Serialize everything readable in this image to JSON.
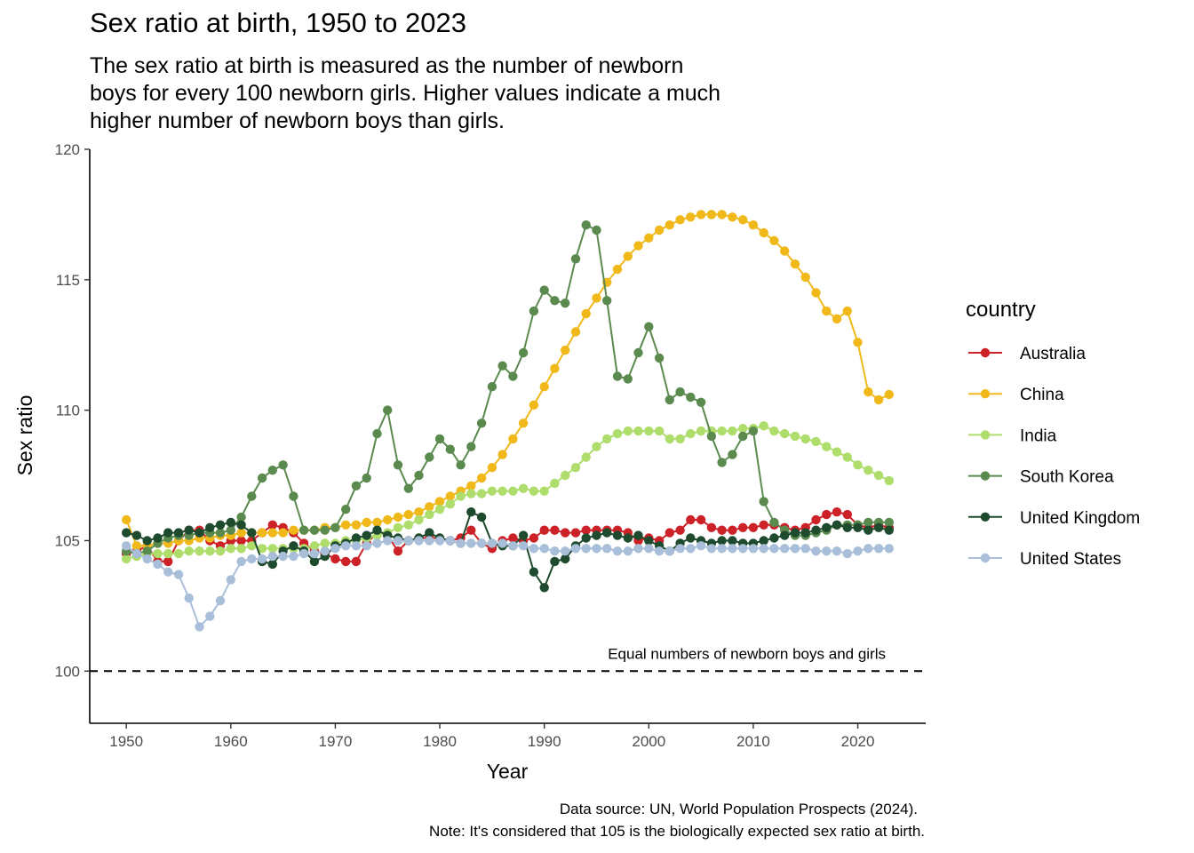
{
  "chart_data": {
    "type": "line",
    "title": "Sex ratio at birth, 1950 to 2023",
    "subtitle": "The sex ratio at birth is measured as the number of newborn\nboys for every 100 newborn girls. Higher values indicate a much\nhigher number of newborn boys than girls.",
    "xlabel": "Year",
    "ylabel": "Sex ratio",
    "xlim": [
      1946.5,
      2026.5
    ],
    "ylim": [
      98,
      120
    ],
    "x_ticks": [
      1950,
      1960,
      1970,
      1980,
      1990,
      2000,
      2010,
      2020
    ],
    "y_ticks": [
      100,
      105,
      110,
      115,
      120
    ],
    "grid": false,
    "legend_title": "country",
    "legend_position": "right",
    "reference_line": {
      "y": 100,
      "style": "dashed",
      "label": "Equal numbers of newborn boys and girls"
    },
    "caption": [
      "Data source: UN, World Population Prospects (2024).",
      "Note: It's considered that 105 is the biologically expected sex ratio at birth."
    ],
    "x": [
      1950,
      1951,
      1952,
      1953,
      1954,
      1955,
      1956,
      1957,
      1958,
      1959,
      1960,
      1961,
      1962,
      1963,
      1964,
      1965,
      1966,
      1967,
      1968,
      1969,
      1970,
      1971,
      1972,
      1973,
      1974,
      1975,
      1976,
      1977,
      1978,
      1979,
      1980,
      1981,
      1982,
      1983,
      1984,
      1985,
      1986,
      1987,
      1988,
      1989,
      1990,
      1991,
      1992,
      1993,
      1994,
      1995,
      1996,
      1997,
      1998,
      1999,
      2000,
      2001,
      2002,
      2003,
      2004,
      2005,
      2006,
      2007,
      2008,
      2009,
      2010,
      2011,
      2012,
      2013,
      2014,
      2015,
      2016,
      2017,
      2018,
      2019,
      2020,
      2021,
      2022,
      2023
    ],
    "series": [
      {
        "name": "Australia",
        "color": "#cc2127",
        "values": [
          104.5,
          104.6,
          104.8,
          104.2,
          104.2,
          105.0,
          105.4,
          105.4,
          105.0,
          104.8,
          105.0,
          105.0,
          105.0,
          105.3,
          105.6,
          105.5,
          105.3,
          104.9,
          104.6,
          104.5,
          104.3,
          104.2,
          104.2,
          104.9,
          105.3,
          105.2,
          104.6,
          105.0,
          105.1,
          105.1,
          105.1,
          105.0,
          105.1,
          105.4,
          104.9,
          104.7,
          105.0,
          105.1,
          105.0,
          105.1,
          105.4,
          105.4,
          105.3,
          105.3,
          105.4,
          105.4,
          105.4,
          105.4,
          105.3,
          105.0,
          105.1,
          105.0,
          105.3,
          105.4,
          105.8,
          105.8,
          105.5,
          105.4,
          105.4,
          105.5,
          105.5,
          105.6,
          105.6,
          105.5,
          105.4,
          105.5,
          105.8,
          106.0,
          106.1,
          106.0,
          105.6,
          105.5,
          105.6,
          105.5
        ]
      },
      {
        "name": "China",
        "color": "#f0b819",
        "values": [
          105.8,
          104.8,
          104.8,
          104.9,
          104.9,
          105.0,
          105.0,
          105.1,
          105.1,
          105.2,
          105.2,
          105.3,
          105.3,
          105.3,
          105.3,
          105.3,
          105.4,
          105.4,
          105.4,
          105.5,
          105.5,
          105.6,
          105.6,
          105.7,
          105.7,
          105.8,
          105.9,
          106.0,
          106.1,
          106.3,
          106.5,
          106.7,
          106.9,
          107.1,
          107.4,
          107.8,
          108.3,
          108.9,
          109.5,
          110.2,
          110.9,
          111.6,
          112.3,
          113.0,
          113.7,
          114.3,
          114.9,
          115.4,
          115.9,
          116.3,
          116.6,
          116.9,
          117.1,
          117.3,
          117.4,
          117.5,
          117.5,
          117.5,
          117.4,
          117.3,
          117.1,
          116.8,
          116.5,
          116.1,
          115.6,
          115.1,
          114.5,
          113.8,
          113.5,
          113.8,
          112.6,
          110.7,
          110.4,
          110.6
        ]
      },
      {
        "name": "India",
        "color": "#aedd6c",
        "values": [
          104.3,
          104.4,
          104.5,
          104.5,
          104.5,
          104.5,
          104.6,
          104.6,
          104.6,
          104.6,
          104.7,
          104.7,
          104.8,
          104.7,
          104.7,
          104.7,
          104.7,
          104.7,
          104.8,
          104.9,
          104.9,
          105.0,
          105.0,
          105.1,
          105.2,
          105.3,
          105.5,
          105.6,
          105.8,
          106.0,
          106.2,
          106.4,
          106.7,
          106.8,
          106.8,
          106.9,
          106.9,
          106.9,
          107.0,
          106.9,
          106.9,
          107.2,
          107.5,
          107.8,
          108.2,
          108.6,
          108.9,
          109.1,
          109.2,
          109.2,
          109.2,
          109.2,
          108.9,
          108.9,
          109.1,
          109.2,
          109.2,
          109.2,
          109.2,
          109.3,
          109.3,
          109.4,
          109.2,
          109.1,
          109.0,
          108.9,
          108.8,
          108.6,
          108.4,
          108.2,
          107.9,
          107.7,
          107.5,
          107.3
        ]
      },
      {
        "name": "South Korea",
        "color": "#5b8a4f",
        "values": [
          104.6,
          104.5,
          104.6,
          104.9,
          105.1,
          105.2,
          105.2,
          105.3,
          105.3,
          105.3,
          105.4,
          105.9,
          106.7,
          107.4,
          107.7,
          107.9,
          106.7,
          105.4,
          105.4,
          105.4,
          105.5,
          106.2,
          107.1,
          107.4,
          109.1,
          110.0,
          107.9,
          107.0,
          107.5,
          108.2,
          108.9,
          108.5,
          107.9,
          108.6,
          109.5,
          110.9,
          111.7,
          111.3,
          112.2,
          113.8,
          114.6,
          114.2,
          114.1,
          115.8,
          117.1,
          116.9,
          114.2,
          111.3,
          111.2,
          112.2,
          113.2,
          112.0,
          110.4,
          110.7,
          110.5,
          110.3,
          109.0,
          108.0,
          108.3,
          109.0,
          109.2,
          106.5,
          105.7,
          105.4,
          105.2,
          105.2,
          105.3,
          105.4,
          105.6,
          105.6,
          105.6,
          105.7,
          105.7,
          105.7
        ]
      },
      {
        "name": "United Kingdom",
        "color": "#1e4a2e",
        "values": [
          105.3,
          105.2,
          105.0,
          105.1,
          105.3,
          105.3,
          105.4,
          105.3,
          105.5,
          105.6,
          105.7,
          105.6,
          105.3,
          104.2,
          104.1,
          104.6,
          104.8,
          104.6,
          104.2,
          104.4,
          104.8,
          104.9,
          105.1,
          105.2,
          105.4,
          105.2,
          105.1,
          105.0,
          105.1,
          105.3,
          105.1,
          105.0,
          104.9,
          106.1,
          105.9,
          104.9,
          104.8,
          104.8,
          105.2,
          103.8,
          103.2,
          104.2,
          104.3,
          104.8,
          105.1,
          105.2,
          105.3,
          105.2,
          105.1,
          105.2,
          105.0,
          104.8,
          104.6,
          104.9,
          105.1,
          105.0,
          104.9,
          105.0,
          105.0,
          104.9,
          104.9,
          105.0,
          105.1,
          105.2,
          105.3,
          105.3,
          105.4,
          105.5,
          105.6,
          105.5,
          105.5,
          105.4,
          105.5,
          105.4
        ]
      },
      {
        "name": "United States",
        "color": "#a9bfd9",
        "values": [
          104.8,
          104.5,
          104.3,
          104.1,
          103.8,
          103.7,
          102.8,
          101.7,
          102.1,
          102.7,
          103.5,
          104.2,
          104.3,
          104.3,
          104.4,
          104.4,
          104.4,
          104.5,
          104.5,
          104.6,
          104.7,
          104.8,
          104.8,
          104.8,
          104.9,
          105.0,
          105.0,
          105.0,
          105.0,
          105.0,
          105.0,
          105.0,
          104.9,
          104.9,
          104.9,
          104.9,
          104.9,
          104.8,
          104.8,
          104.7,
          104.7,
          104.6,
          104.6,
          104.7,
          104.7,
          104.7,
          104.7,
          104.6,
          104.6,
          104.7,
          104.7,
          104.6,
          104.6,
          104.7,
          104.7,
          104.8,
          104.7,
          104.7,
          104.7,
          104.7,
          104.7,
          104.7,
          104.7,
          104.7,
          104.7,
          104.7,
          104.6,
          104.6,
          104.6,
          104.5,
          104.6,
          104.7,
          104.7,
          104.7
        ]
      }
    ]
  }
}
